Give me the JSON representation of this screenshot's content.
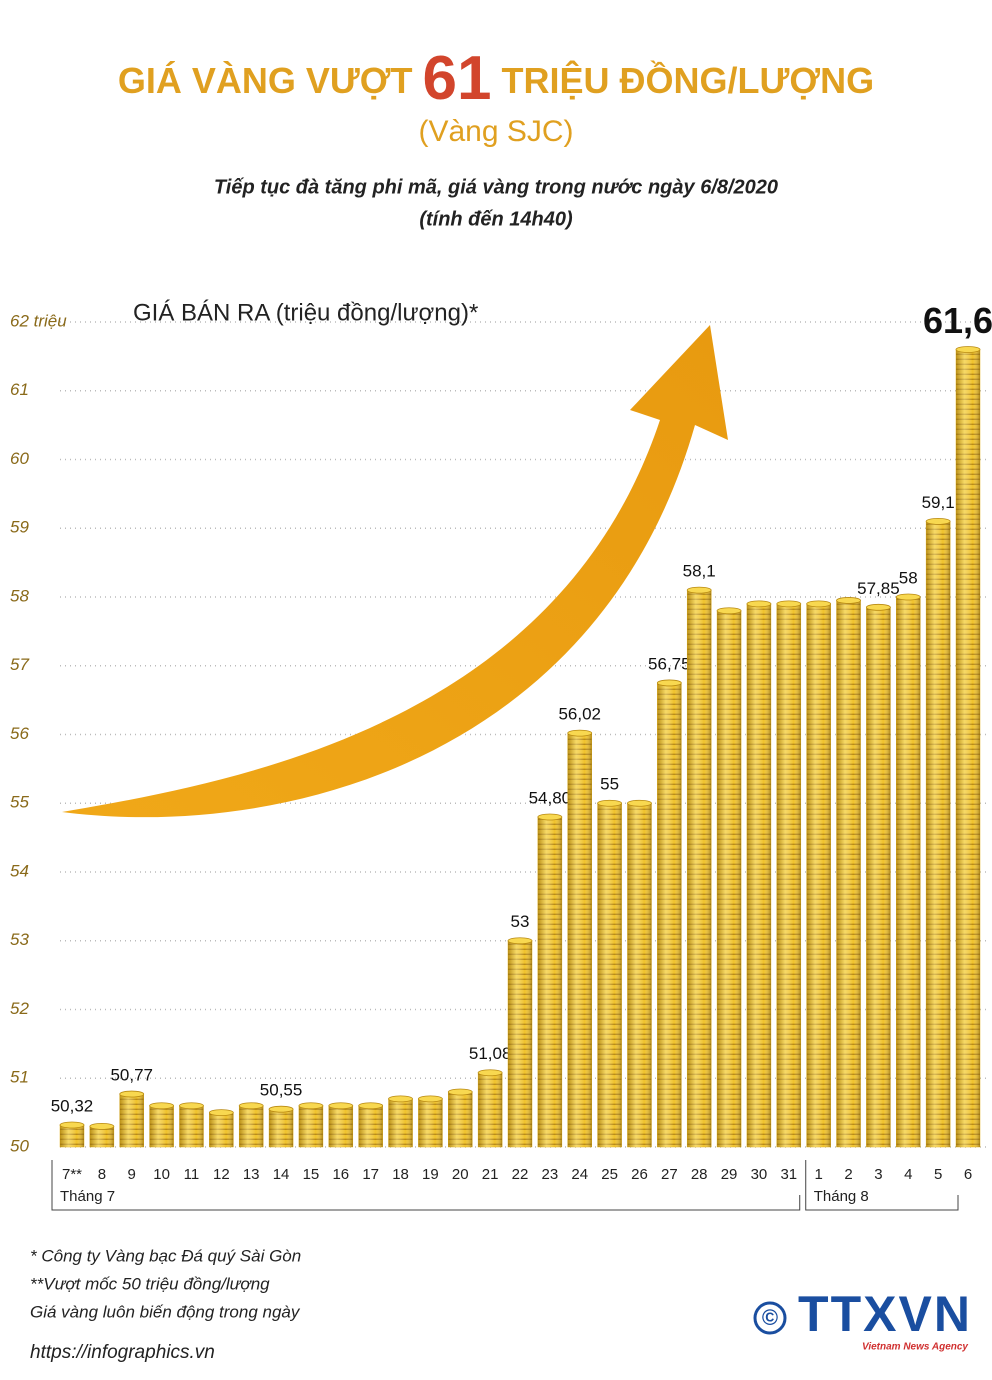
{
  "header": {
    "title_before": "GIÁ VÀNG VƯỢT",
    "title_number": "61",
    "title_after": "TRIỆU ĐỒNG/LƯỢNG",
    "title_note": "(Vàng SJC)",
    "subtitle_lines": [
      "Tiếp tục đà tăng phi mã, giá vàng trong nước ngày 6/8/2020",
      "(tính đến 14h40)"
    ]
  },
  "chart_data": {
    "type": "bar",
    "axis_label": "GIÁ BÁN RA (triệu đồng/lượng)*",
    "categories": [
      "7**",
      "8",
      "9",
      "10",
      "11",
      "12",
      "13",
      "14",
      "15",
      "16",
      "17",
      "18",
      "19",
      "20",
      "21",
      "22",
      "23",
      "24",
      "25",
      "26",
      "27",
      "28",
      "29",
      "30",
      "31",
      "1",
      "2",
      "3",
      "4",
      "5",
      "6"
    ],
    "values": [
      50.32,
      50.3,
      50.77,
      50.6,
      50.6,
      50.5,
      50.6,
      50.55,
      50.6,
      50.6,
      50.6,
      50.7,
      50.7,
      50.8,
      51.08,
      53,
      54.8,
      56.02,
      55,
      55,
      56.75,
      58.1,
      57.8,
      57.9,
      57.9,
      57.9,
      57.95,
      57.85,
      58,
      59.1,
      61.6
    ],
    "value_labels": [
      "50,32",
      null,
      "50,77",
      null,
      null,
      null,
      null,
      "50,55",
      null,
      null,
      null,
      null,
      null,
      null,
      "51,08",
      "53",
      "54,80",
      "56,02",
      "55",
      null,
      "56,75",
      "58,1",
      null,
      null,
      null,
      null,
      null,
      "57,85",
      "58",
      "59,1",
      "61,6"
    ],
    "groups": [
      {
        "label": "Tháng 7"
      },
      {
        "label": "Tháng 8"
      }
    ],
    "color": "#e8b51e",
    "ylim": [
      50,
      62
    ],
    "yticks": [
      50,
      51,
      52,
      53,
      54,
      55,
      56,
      57,
      58,
      59,
      60,
      61,
      {
        "value": 62,
        "label": "62 triệu"
      }
    ],
    "grid": true
  },
  "footnotes": [
    "* Công ty Vàng bạc Đá quý Sài Gòn",
    "**Vượt mốc 50 triệu đồng/lượng",
    "Giá vàng luôn biến động trong ngày"
  ],
  "source_url": "https://infographics.vn",
  "logo": {
    "symbol": "©",
    "name": "TTXVN",
    "tagline": "Vietnam News Agency"
  }
}
